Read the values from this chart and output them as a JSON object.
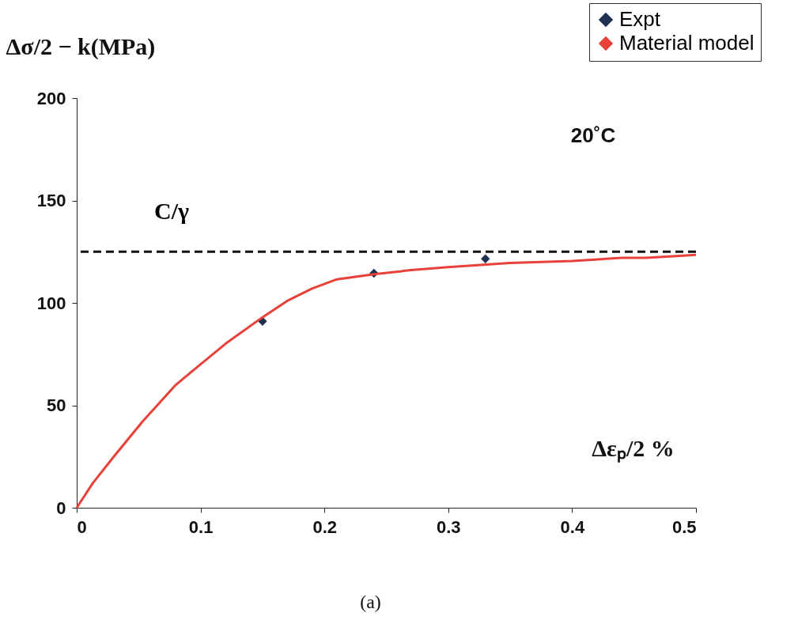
{
  "chart_data": {
    "type": "line",
    "xlabel": "Δεₚ/2 %",
    "ylabel": "Δσ/2 − k(MPa)",
    "xlim": [
      0,
      0.5
    ],
    "xticks": [
      0,
      0.1,
      0.2,
      0.3,
      0.4,
      0.5
    ],
    "ylim": [
      0,
      200
    ],
    "yticks": [
      0,
      50,
      100,
      150,
      200
    ],
    "grid": false,
    "legend": "top right",
    "series": [
      {
        "name": "Expt",
        "type": "scatter",
        "marker": "diamond",
        "color": "#1f3050",
        "x": [
          0.15,
          0.24,
          0.33
        ],
        "values": [
          91,
          114.5,
          121.5
        ]
      },
      {
        "name": "Material model",
        "color": "#e8413a",
        "line_style": "solid",
        "x": [
          0,
          0.013,
          0.03,
          0.053,
          0.08,
          0.1,
          0.12,
          0.15,
          0.17,
          0.19,
          0.21,
          0.24,
          0.27,
          0.3,
          0.35,
          0.4,
          0.44,
          0.46,
          0.5
        ],
        "values": [
          0,
          12,
          25,
          42,
          60,
          70,
          80,
          93,
          101,
          107,
          111.5,
          114,
          116,
          117.5,
          119.5,
          120.5,
          122,
          122,
          123.5
        ]
      }
    ],
    "ref_lines": [
      {
        "axis": "y",
        "value": 125,
        "label": "C/γ",
        "color": "#111111",
        "line_style": "dashed"
      }
    ],
    "annotations": [
      "20˚C",
      "(a)"
    ]
  }
}
